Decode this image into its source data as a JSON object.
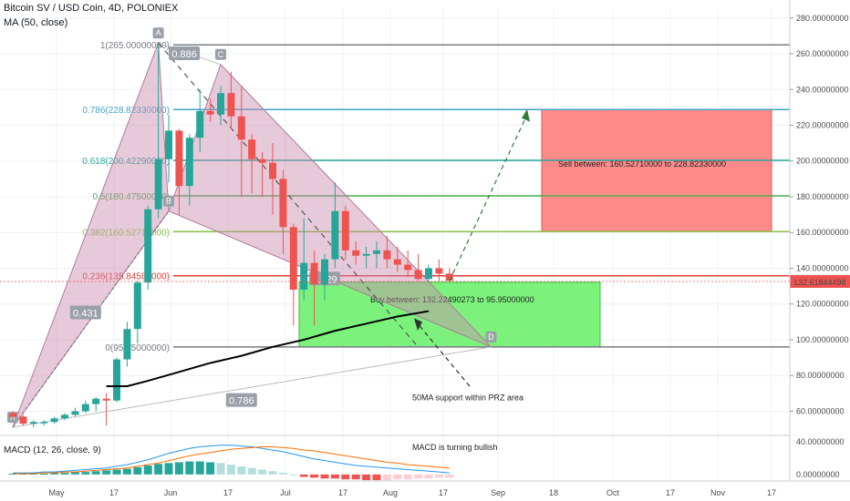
{
  "header": {
    "symbol": "Bitcoin SV / USD Coin, 4D, POLONIEX",
    "indicator": "MA (50, close)"
  },
  "chart_data": {
    "type": "candlestick",
    "y_axis": {
      "ticks": [
        "280.00000000",
        "260.00000000",
        "240.00000000",
        "220.00000000",
        "200.00000000",
        "180.00000000",
        "160.00000000",
        "140.00000000",
        "120.00000000",
        "100.00000000",
        "80.00000000",
        "60.00000000"
      ],
      "tick_values": [
        280,
        260,
        240,
        220,
        200,
        180,
        160,
        140,
        120,
        100,
        80,
        60
      ],
      "range": [
        48,
        286
      ],
      "last_price": "132.61844498",
      "last_price_value": 132.6
    },
    "x_axis": {
      "ticks": [
        "May",
        "17",
        "Jun",
        "17",
        "Jul",
        "17",
        "Aug",
        "17",
        "Sep",
        "18",
        "Oct",
        "17",
        "Nov",
        "17"
      ]
    },
    "candles": [
      {
        "o": 59,
        "h": 60,
        "l": 56,
        "c": 57
      },
      {
        "o": 57,
        "h": 58,
        "l": 52,
        "c": 53
      },
      {
        "o": 53,
        "h": 55,
        "l": 51,
        "c": 54
      },
      {
        "o": 54,
        "h": 55,
        "l": 52,
        "c": 54
      },
      {
        "o": 54,
        "h": 57,
        "l": 53,
        "c": 56
      },
      {
        "o": 56,
        "h": 59,
        "l": 55,
        "c": 58
      },
      {
        "o": 58,
        "h": 62,
        "l": 57,
        "c": 60
      },
      {
        "o": 60,
        "h": 66,
        "l": 59,
        "c": 64
      },
      {
        "o": 64,
        "h": 68,
        "l": 60,
        "c": 67
      },
      {
        "o": 67,
        "h": 70,
        "l": 52,
        "c": 66
      },
      {
        "o": 66,
        "h": 90,
        "l": 65,
        "c": 89
      },
      {
        "o": 89,
        "h": 110,
        "l": 85,
        "c": 106
      },
      {
        "o": 106,
        "h": 133,
        "l": 98,
        "c": 132
      },
      {
        "o": 132,
        "h": 175,
        "l": 128,
        "c": 173
      },
      {
        "o": 173,
        "h": 266,
        "l": 168,
        "c": 201
      },
      {
        "o": 201,
        "h": 226,
        "l": 188,
        "c": 217
      },
      {
        "o": 217,
        "h": 218,
        "l": 170,
        "c": 186
      },
      {
        "o": 186,
        "h": 215,
        "l": 175,
        "c": 213
      },
      {
        "o": 213,
        "h": 240,
        "l": 205,
        "c": 228
      },
      {
        "o": 228,
        "h": 235,
        "l": 222,
        "c": 226
      },
      {
        "o": 226,
        "h": 242,
        "l": 220,
        "c": 238
      },
      {
        "o": 238,
        "h": 250,
        "l": 218,
        "c": 225
      },
      {
        "o": 225,
        "h": 242,
        "l": 180,
        "c": 212
      },
      {
        "o": 212,
        "h": 215,
        "l": 182,
        "c": 201
      },
      {
        "o": 201,
        "h": 205,
        "l": 180,
        "c": 199
      },
      {
        "o": 199,
        "h": 210,
        "l": 170,
        "c": 190
      },
      {
        "o": 190,
        "h": 195,
        "l": 148,
        "c": 163
      },
      {
        "o": 163,
        "h": 165,
        "l": 108,
        "c": 128
      },
      {
        "o": 128,
        "h": 168,
        "l": 122,
        "c": 143
      },
      {
        "o": 143,
        "h": 150,
        "l": 108,
        "c": 131
      },
      {
        "o": 131,
        "h": 148,
        "l": 122,
        "c": 145
      },
      {
        "o": 145,
        "h": 188,
        "l": 140,
        "c": 172
      },
      {
        "o": 172,
        "h": 175,
        "l": 145,
        "c": 150
      },
      {
        "o": 150,
        "h": 155,
        "l": 142,
        "c": 147
      },
      {
        "o": 147,
        "h": 152,
        "l": 140,
        "c": 148
      },
      {
        "o": 148,
        "h": 155,
        "l": 140,
        "c": 150
      },
      {
        "o": 150,
        "h": 158,
        "l": 140,
        "c": 145
      },
      {
        "o": 145,
        "h": 152,
        "l": 138,
        "c": 142
      },
      {
        "o": 142,
        "h": 150,
        "l": 135,
        "c": 139
      },
      {
        "o": 139,
        "h": 148,
        "l": 133,
        "c": 134
      },
      {
        "o": 134,
        "h": 142,
        "l": 132,
        "c": 140
      },
      {
        "o": 140,
        "h": 145,
        "l": 133,
        "c": 137
      },
      {
        "o": 137,
        "h": 140,
        "l": 132,
        "c": 133
      }
    ],
    "ma50": [
      {
        "i": 9,
        "v": 74
      },
      {
        "i": 11,
        "v": 74
      },
      {
        "i": 13,
        "v": 77
      },
      {
        "i": 16,
        "v": 82
      },
      {
        "i": 19,
        "v": 87
      },
      {
        "i": 22,
        "v": 91
      },
      {
        "i": 25,
        "v": 96
      },
      {
        "i": 28,
        "v": 100
      },
      {
        "i": 31,
        "v": 105
      },
      {
        "i": 34,
        "v": 109
      },
      {
        "i": 37,
        "v": 113
      },
      {
        "i": 40,
        "v": 116
      }
    ],
    "fib_levels": [
      {
        "label": "1(265.00000000)",
        "value": 265,
        "color": "#787b86"
      },
      {
        "label": "0.786(228.82330000)",
        "value": 228.8,
        "color": "#40a4c4"
      },
      {
        "label": "0.618(200.42290000)",
        "value": 200.4,
        "color": "#26a69a"
      },
      {
        "label": "0.5(180.47500000)",
        "value": 180.5,
        "color": "#4caf50"
      },
      {
        "label": "0.382(160.52710000)",
        "value": 160.5,
        "color": "#8bc34a"
      },
      {
        "label": "0.236(135.84580000)",
        "value": 135.8,
        "color": "#e53935"
      },
      {
        "label": "0(95.95000000)",
        "value": 96,
        "color": "#787b86"
      }
    ],
    "pattern_points": [
      {
        "name": "X",
        "i": 0,
        "v": 51
      },
      {
        "name": "A",
        "i": 14,
        "v": 266
      },
      {
        "name": "B",
        "i": 15,
        "v": 172
      },
      {
        "name": "C",
        "i": 20,
        "v": 254
      },
      {
        "name": "D",
        "i": 46,
        "v": 96
      }
    ],
    "ratios": [
      {
        "text": "0.886",
        "i": 16.5,
        "v": 260
      },
      {
        "text": "0.431",
        "i": 7,
        "v": 115
      },
      {
        "text": "0.786",
        "i": 22,
        "v": 66
      },
      {
        "text": "1.929",
        "i": 30,
        "v": 134
      }
    ],
    "sell_zone": {
      "text": "Sell between: 160.52710000 to 228.82330000",
      "top": 228.8,
      "bottom": 160.5
    },
    "buy_zone": {
      "text": "Buy between: 132.22490273 to 95.95000000",
      "top": 132.2,
      "bottom": 95.9
    },
    "annotation_ma": "50MA support within PRZ area",
    "macd": {
      "label": "MACD (12, 26, close, 9)",
      "note": "MACD is turning bullish",
      "ticks": [
        "40.00000000",
        "0.00000000"
      ],
      "tick_values": [
        40,
        0
      ],
      "hist": [
        1,
        1,
        1,
        1,
        2,
        2,
        3,
        3,
        4,
        5,
        6,
        7,
        9,
        11,
        13,
        14,
        15,
        16,
        16,
        15,
        14,
        12,
        10,
        8,
        6,
        4,
        2,
        0,
        -3,
        -4,
        -5,
        -5,
        -6,
        -6,
        -7,
        -7,
        -7,
        -6,
        -6,
        -5,
        -5,
        -4,
        -4
      ],
      "macd_line": [
        2,
        2,
        2,
        3,
        3,
        4,
        5,
        6,
        7,
        8,
        10,
        12,
        15,
        18,
        22,
        26,
        29,
        32,
        34,
        35,
        36,
        36,
        35,
        34,
        32,
        30,
        28,
        25,
        22,
        19,
        17,
        15,
        13,
        11,
        10,
        9,
        8,
        7,
        6,
        5,
        4,
        3,
        2
      ],
      "signal_line": [
        1,
        1,
        1,
        2,
        2,
        3,
        3,
        4,
        5,
        6,
        7,
        8,
        10,
        12,
        14,
        17,
        20,
        23,
        25,
        27,
        29,
        31,
        32,
        33,
        34,
        34,
        33,
        32,
        30,
        29,
        27,
        25,
        23,
        21,
        19,
        17,
        15,
        14,
        12,
        11,
        10,
        9,
        8
      ]
    },
    "colors": {
      "up": "#26a69a",
      "down": "#ef5350",
      "ma": "#000000",
      "sell": "#ff8a8a",
      "buy": "#7cf27c",
      "pattern": "#c98aae"
    }
  }
}
